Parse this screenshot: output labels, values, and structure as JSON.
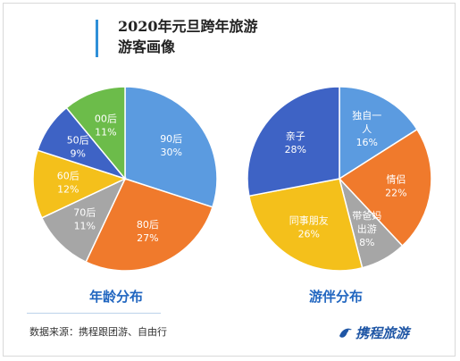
{
  "title": {
    "line1": "2020年元旦跨年旅游",
    "line2": "游客画像"
  },
  "chart_data": [
    {
      "type": "pie",
      "caption": "年龄分布",
      "slices": [
        {
          "label": [
            "90后"
          ],
          "value": 30,
          "pct": "30%",
          "color": "#5b9be0"
        },
        {
          "label": [
            "80后"
          ],
          "value": 27,
          "pct": "27%",
          "color": "#f07a2c"
        },
        {
          "label": [
            "70后"
          ],
          "value": 11,
          "pct": "11%",
          "color": "#a6a6a6"
        },
        {
          "label": [
            "60后"
          ],
          "value": 12,
          "pct": "12%",
          "color": "#f4c01b"
        },
        {
          "label": [
            "50后"
          ],
          "value": 9,
          "pct": "9%",
          "color": "#3e63c5"
        },
        {
          "label": [
            "00后"
          ],
          "value": 11,
          "pct": "11%",
          "color": "#6cbc4a"
        }
      ]
    },
    {
      "type": "pie",
      "caption": "游伴分布",
      "slices": [
        {
          "label": [
            "独自一",
            "人"
          ],
          "value": 16,
          "pct": "16%",
          "color": "#5b9be0"
        },
        {
          "label": [
            "情侣"
          ],
          "value": 22,
          "pct": "22%",
          "color": "#f07a2c"
        },
        {
          "label": [
            "带爸妈",
            "出游"
          ],
          "value": 8,
          "pct": "8%",
          "color": "#a6a6a6"
        },
        {
          "label": [
            "同事朋友"
          ],
          "value": 26,
          "pct": "26%",
          "color": "#f4c01b"
        },
        {
          "label": [
            "亲子"
          ],
          "value": 28,
          "pct": "28%",
          "color": "#3e63c5"
        }
      ]
    }
  ],
  "source": "数据来源：携程跟团游、自由行",
  "logo": {
    "text": "携程旅游",
    "icon": "ctrip-dolphin-icon"
  }
}
